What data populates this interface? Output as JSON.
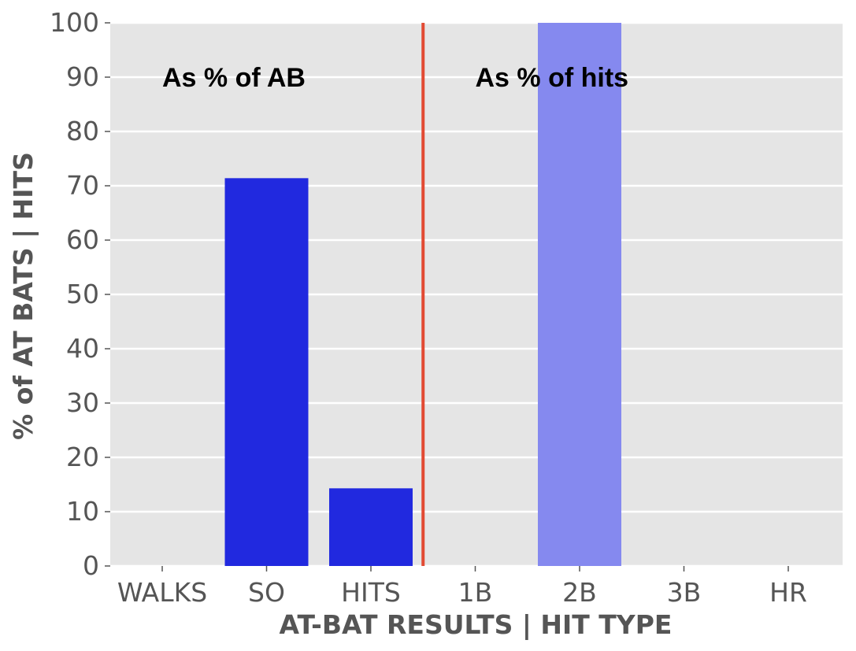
{
  "chart_data": {
    "type": "bar",
    "categories": [
      "WALKS",
      "SO",
      "HITS",
      "1B",
      "2B",
      "3B",
      "HR"
    ],
    "series": [
      {
        "values": [
          0,
          71.4,
          14.3,
          0,
          100,
          0,
          0
        ],
        "colors": [
          "#2129df",
          "#2129df",
          "#2129df",
          "#8589ef",
          "#8589ef",
          "#8589ef",
          "#8589ef"
        ]
      }
    ],
    "xlabel": "AT-BAT RESULTS | HIT TYPE",
    "ylabel": "% of AT BATS | HITS",
    "ylim": [
      0,
      100
    ],
    "yticks": [
      0,
      10,
      20,
      30,
      40,
      50,
      60,
      70,
      80,
      90,
      100
    ],
    "grid": true,
    "background": "#e5e5e5",
    "gridline_color": "#ffffff",
    "divider": {
      "between": [
        "HITS",
        "1B"
      ],
      "color": "#e24a33"
    },
    "annotations": [
      {
        "text": "As % of AB",
        "anchor_category": "WALKS",
        "y": 90
      },
      {
        "text": "As % of hits",
        "anchor_category": "1B",
        "y": 90
      }
    ]
  }
}
